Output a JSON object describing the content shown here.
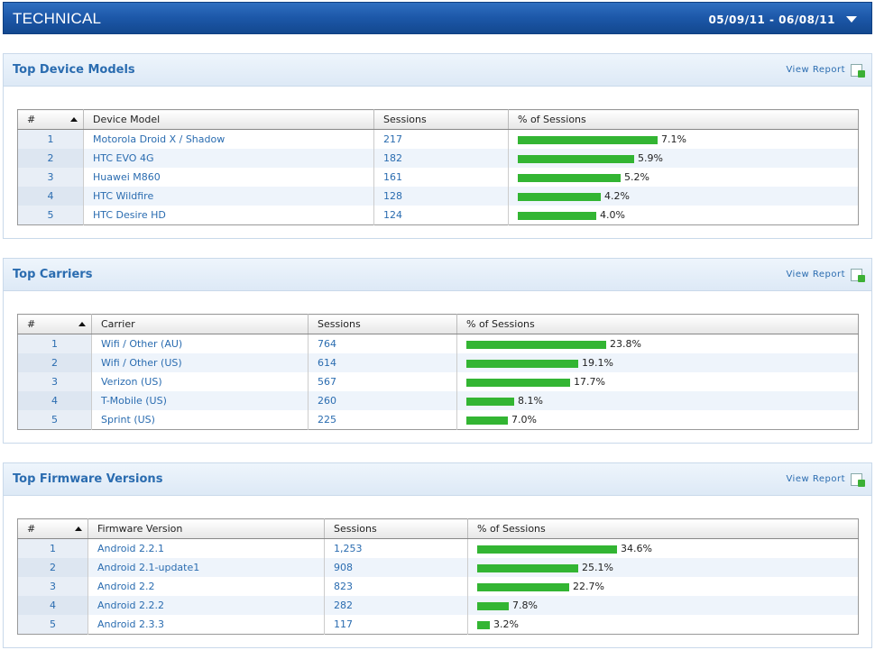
{
  "header": {
    "title": "TECHNICAL",
    "date_range": "05/09/11 - 06/08/11"
  },
  "common": {
    "view_report": "View Report",
    "col_num": "#",
    "col_sessions": "Sessions",
    "col_pct": "% of Sessions"
  },
  "panels": [
    {
      "title": "Top Device Models",
      "col_name": "Device Model",
      "rows": [
        {
          "rank": "1",
          "name": "Motorola Droid X / Shadow",
          "sessions": "217",
          "pct": "7.1%",
          "pct_value": 7.1
        },
        {
          "rank": "2",
          "name": "HTC EVO 4G",
          "sessions": "182",
          "pct": "5.9%",
          "pct_value": 5.9
        },
        {
          "rank": "3",
          "name": "Huawei M860",
          "sessions": "161",
          "pct": "5.2%",
          "pct_value": 5.2
        },
        {
          "rank": "4",
          "name": "HTC Wildfire",
          "sessions": "128",
          "pct": "4.2%",
          "pct_value": 4.2
        },
        {
          "rank": "5",
          "name": "HTC Desire HD",
          "sessions": "124",
          "pct": "4.0%",
          "pct_value": 4.0
        }
      ]
    },
    {
      "title": "Top Carriers",
      "col_name": "Carrier",
      "rows": [
        {
          "rank": "1",
          "name": "Wifi / Other (AU)",
          "sessions": "764",
          "pct": "23.8%",
          "pct_value": 23.8
        },
        {
          "rank": "2",
          "name": "Wifi / Other (US)",
          "sessions": "614",
          "pct": "19.1%",
          "pct_value": 19.1
        },
        {
          "rank": "3",
          "name": "Verizon (US)",
          "sessions": "567",
          "pct": "17.7%",
          "pct_value": 17.7
        },
        {
          "rank": "4",
          "name": "T-Mobile (US)",
          "sessions": "260",
          "pct": "8.1%",
          "pct_value": 8.1
        },
        {
          "rank": "5",
          "name": "Sprint (US)",
          "sessions": "225",
          "pct": "7.0%",
          "pct_value": 7.0
        }
      ]
    },
    {
      "title": "Top Firmware Versions",
      "col_name": "Firmware Version",
      "rows": [
        {
          "rank": "1",
          "name": "Android 2.2.1",
          "sessions": "1,253",
          "pct": "34.6%",
          "pct_value": 34.6
        },
        {
          "rank": "2",
          "name": "Android 2.1-update1",
          "sessions": "908",
          "pct": "25.1%",
          "pct_value": 25.1
        },
        {
          "rank": "3",
          "name": "Android 2.2",
          "sessions": "823",
          "pct": "22.7%",
          "pct_value": 22.7
        },
        {
          "rank": "4",
          "name": "Android 2.2.2",
          "sessions": "282",
          "pct": "7.8%",
          "pct_value": 7.8
        },
        {
          "rank": "5",
          "name": "Android 2.3.3",
          "sessions": "117",
          "pct": "3.2%",
          "pct_value": 3.2
        }
      ]
    }
  ],
  "icons": {
    "dropdown": "chevron-down-icon",
    "report": "report-export-icon",
    "sort": "sort-ascending-icon"
  },
  "colors": {
    "header_blue": "#1c57a8",
    "link_blue": "#2a6cb0",
    "bar_green": "#33b533"
  }
}
